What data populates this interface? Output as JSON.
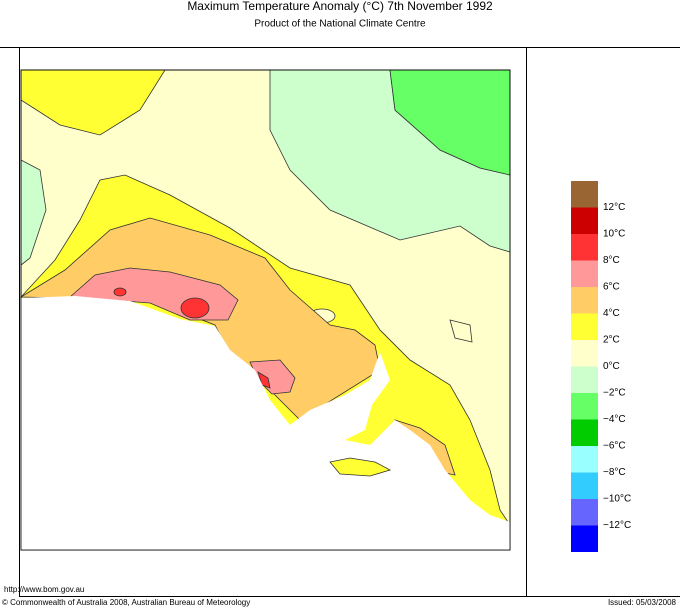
{
  "header": {
    "title": "Maximum Temperature Anomaly (°C)  7th November 1992",
    "subtitle": "Product of the National Climate Centre"
  },
  "legend": {
    "colors": [
      "#996633",
      "#cc0000",
      "#ff3333",
      "#ff9999",
      "#ffcc66",
      "#ffff33",
      "#ffffcc",
      "#ccffcc",
      "#66ff66",
      "#00cc00",
      "#99ffff",
      "#33ccff",
      "#6666ff",
      "#0000ff"
    ],
    "labels": [
      "12°C",
      "10°C",
      "8°C",
      "6°C",
      "4°C",
      "2°C",
      "0°C",
      "−2°C",
      "−4°C",
      "−6°C",
      "−8°C",
      "−10°C",
      "−12°C"
    ]
  },
  "footer": {
    "url": "http://www.bom.gov.au",
    "copyright": "© Commonwealth of Australia 2008, Australian Bureau of Meteorology",
    "issued": "Issued: 05/03/2008"
  }
}
